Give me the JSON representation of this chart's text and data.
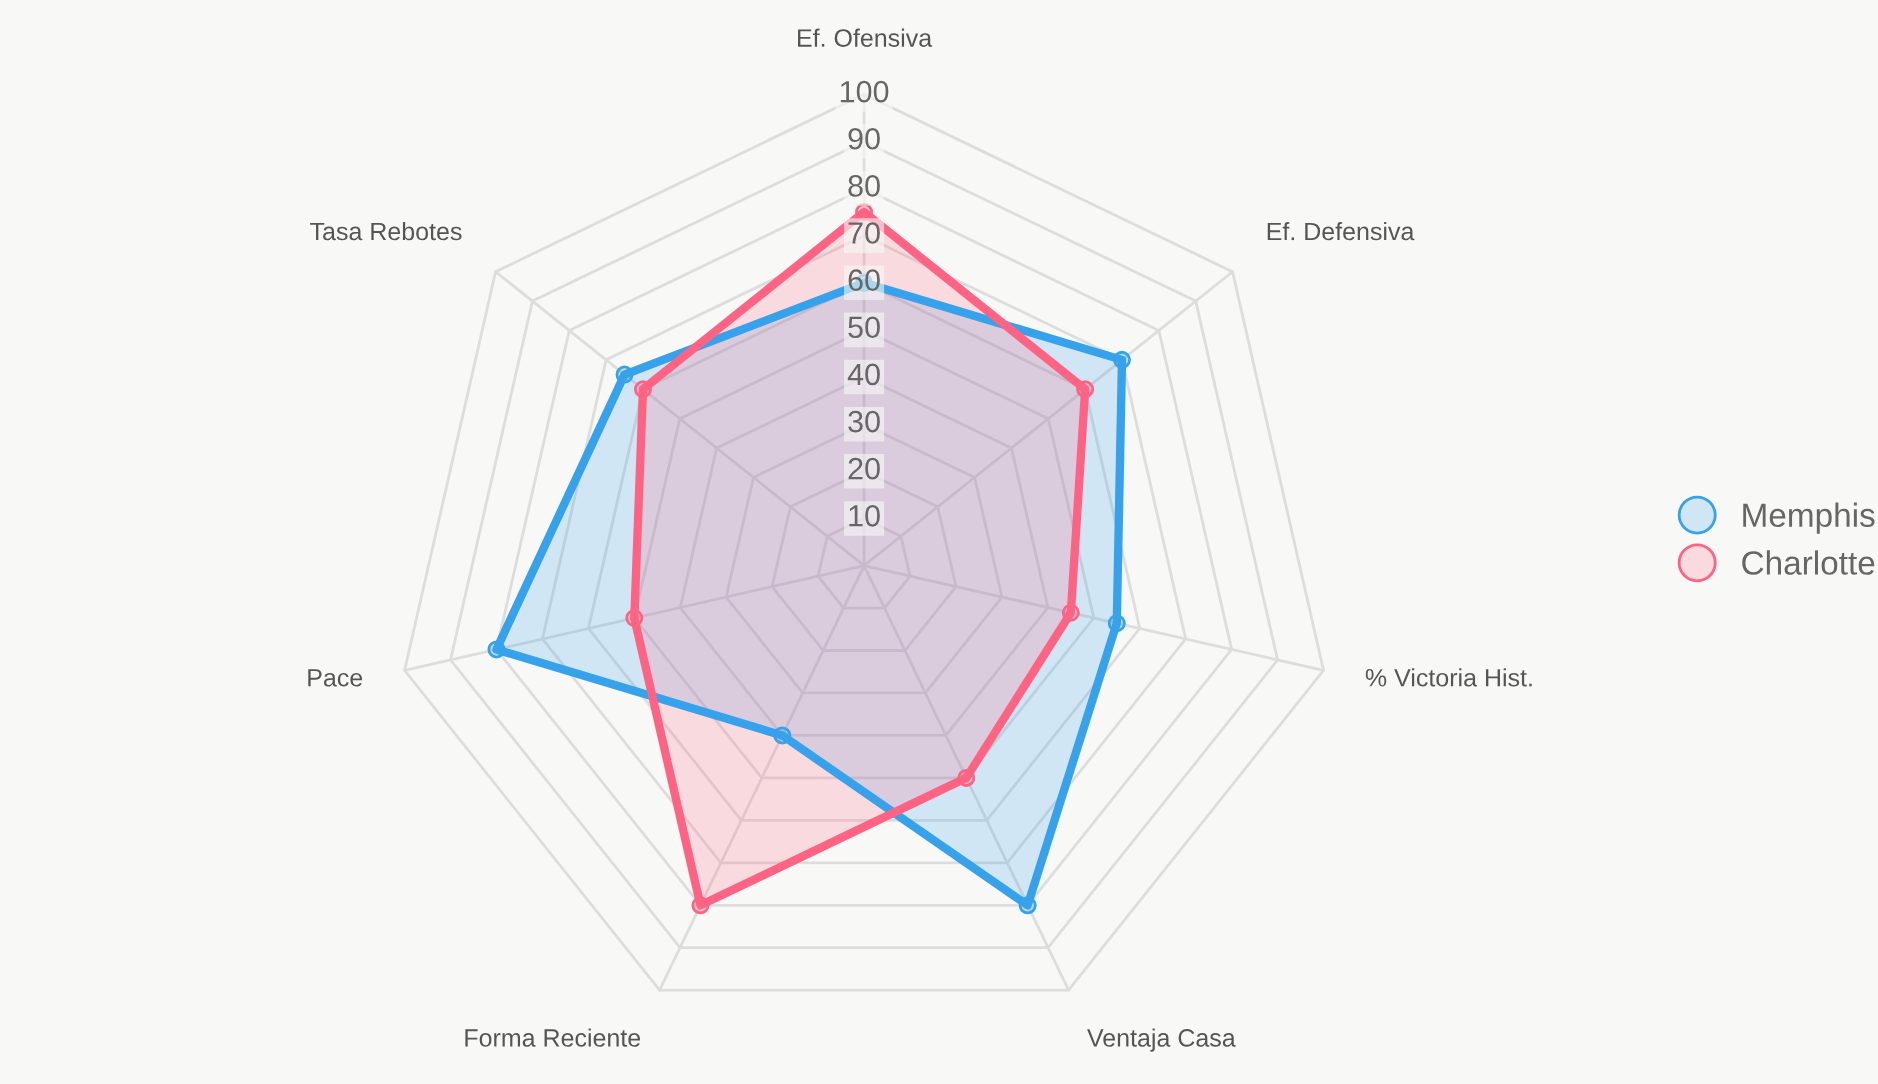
{
  "chart_data": {
    "type": "radar",
    "categories": [
      "Ef. Ofensiva",
      "Ef. Defensiva",
      "% Victoria Hist.",
      "Ventaja Casa",
      "Forma Reciente",
      "Pace",
      "Tasa Rebotes"
    ],
    "series": [
      {
        "name": "Memphis",
        "color": "#36a2eb",
        "values": [
          60,
          70,
          55,
          80,
          40,
          80,
          65
        ]
      },
      {
        "name": "Charlotte",
        "color": "#ff6384",
        "values": [
          75,
          60,
          45,
          50,
          80,
          50,
          60
        ]
      }
    ],
    "ylim": [
      0,
      100
    ],
    "yticks": [
      10,
      20,
      30,
      40,
      50,
      60,
      70,
      80,
      90,
      100
    ],
    "grid": true,
    "legend": "right",
    "marker": "circle",
    "line_style": "solid"
  }
}
